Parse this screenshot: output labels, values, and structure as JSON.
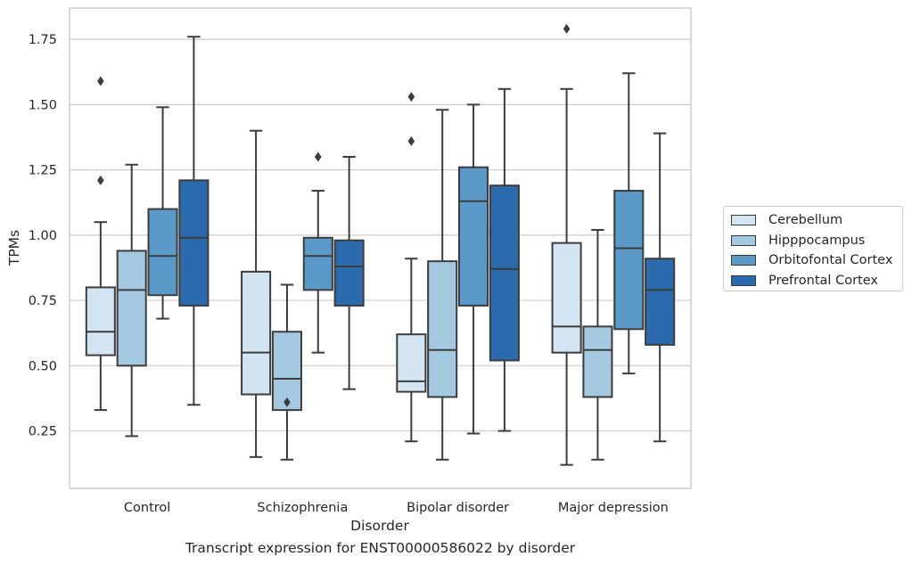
{
  "chart_data": {
    "type": "box",
    "title": "",
    "caption": "Transcript expression for ENST00000586022 by disorder",
    "xlabel": "Disorder",
    "ylabel": "TPMs",
    "ylim": [
      0.03,
      1.87
    ],
    "yticks": [
      "0.25",
      "0.50",
      "0.75",
      "1.00",
      "1.25",
      "1.50",
      "1.75"
    ],
    "grid": "horizontal",
    "legend_position": "right",
    "categories": [
      "Control",
      "Schizophrenia",
      "Bipolar disorder",
      "Major depression"
    ],
    "series": [
      {
        "name": "Cerebellum",
        "color": "#d3e4f3",
        "boxes": [
          {
            "min": 0.33,
            "q1": 0.54,
            "median": 0.63,
            "q3": 0.8,
            "max": 1.05,
            "outliers": [
              1.21,
              1.59
            ]
          },
          {
            "min": 0.15,
            "q1": 0.39,
            "median": 0.55,
            "q3": 0.86,
            "max": 1.4,
            "outliers": []
          },
          {
            "min": 0.21,
            "q1": 0.4,
            "median": 0.44,
            "q3": 0.62,
            "max": 0.91,
            "outliers": [
              1.36,
              1.53
            ]
          },
          {
            "min": 0.12,
            "q1": 0.55,
            "median": 0.65,
            "q3": 0.97,
            "max": 1.56,
            "outliers": [
              1.79
            ]
          }
        ]
      },
      {
        "name": "Hipppocampus",
        "color": "#a3c8e0",
        "boxes": [
          {
            "min": 0.23,
            "q1": 0.5,
            "median": 0.79,
            "q3": 0.94,
            "max": 1.27,
            "outliers": []
          },
          {
            "min": 0.14,
            "q1": 0.33,
            "median": 0.45,
            "q3": 0.63,
            "max": 0.81,
            "outliers": [
              0.36
            ]
          },
          {
            "min": 0.14,
            "q1": 0.38,
            "median": 0.56,
            "q3": 0.9,
            "max": 1.48,
            "outliers": []
          },
          {
            "min": 0.14,
            "q1": 0.38,
            "median": 0.56,
            "q3": 0.65,
            "max": 1.02,
            "outliers": []
          }
        ]
      },
      {
        "name": "Orbitofontal Cortex",
        "color": "#5b9ac8",
        "boxes": [
          {
            "min": 0.68,
            "q1": 0.77,
            "median": 0.92,
            "q3": 1.1,
            "max": 1.49,
            "outliers": []
          },
          {
            "min": 0.55,
            "q1": 0.79,
            "median": 0.92,
            "q3": 0.99,
            "max": 1.17,
            "outliers": [
              1.3
            ]
          },
          {
            "min": 0.24,
            "q1": 0.73,
            "median": 1.13,
            "q3": 1.26,
            "max": 1.5,
            "outliers": []
          },
          {
            "min": 0.47,
            "q1": 0.64,
            "median": 0.95,
            "q3": 1.17,
            "max": 1.62,
            "outliers": []
          }
        ]
      },
      {
        "name": "Prefrontal Cortex",
        "color": "#2a6aad",
        "boxes": [
          {
            "min": 0.35,
            "q1": 0.73,
            "median": 0.99,
            "q3": 1.21,
            "max": 1.76,
            "outliers": []
          },
          {
            "min": 0.41,
            "q1": 0.73,
            "median": 0.88,
            "q3": 0.98,
            "max": 1.3,
            "outliers": []
          },
          {
            "min": 0.25,
            "q1": 0.52,
            "median": 0.87,
            "q3": 1.19,
            "max": 1.56,
            "outliers": []
          },
          {
            "min": 0.21,
            "q1": 0.58,
            "median": 0.79,
            "q3": 0.91,
            "max": 1.39,
            "outliers": []
          }
        ]
      }
    ]
  }
}
